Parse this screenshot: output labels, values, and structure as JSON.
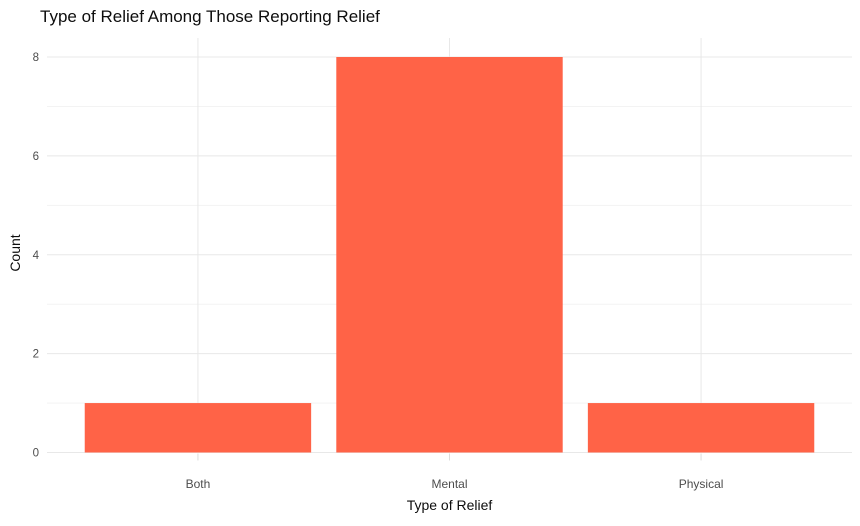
{
  "chart_data": {
    "type": "bar",
    "title": "Type of Relief Among Those Reporting Relief",
    "xlabel": "Type of Relief",
    "ylabel": "Count",
    "categories": [
      "Both",
      "Mental",
      "Physical"
    ],
    "values": [
      1,
      8,
      1
    ],
    "ylim": [
      0,
      8
    ],
    "yticks": [
      0,
      2,
      4,
      6,
      8
    ],
    "minor_yticks": [
      1,
      3,
      5,
      7
    ],
    "grid": "on",
    "legend": "none",
    "bar_color": "#FF6347",
    "background_color": "#FFFFFF",
    "grid_major_color": "#E8E8E8",
    "grid_minor_color": "#F3F3F3",
    "axis_tick_color": "#DDDDDD",
    "tick_label_color": "#4D4D4D",
    "title_color": "#0D0D0D"
  }
}
